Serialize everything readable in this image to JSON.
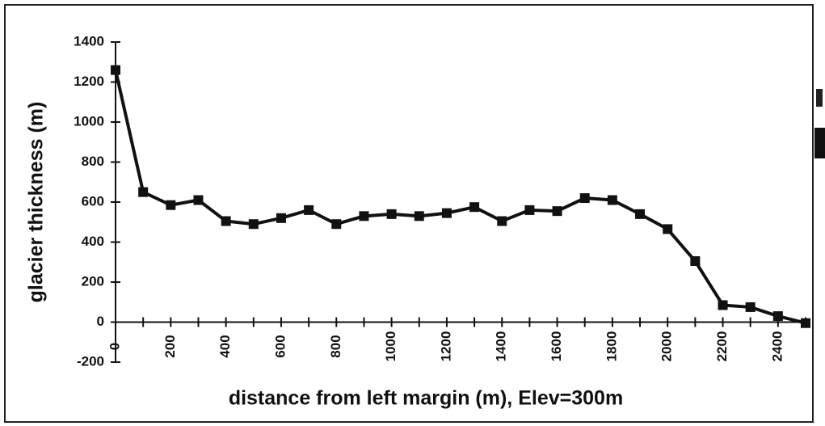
{
  "chart_data": {
    "type": "line",
    "xlabel": "distance from left margin (m), Elev=300m",
    "ylabel": "glacier thickness (m)",
    "x": [
      0,
      100,
      200,
      300,
      400,
      500,
      600,
      700,
      800,
      900,
      1000,
      1100,
      1200,
      1300,
      1400,
      1500,
      1600,
      1700,
      1800,
      1900,
      2000,
      2100,
      2200,
      2300,
      2400,
      2500
    ],
    "series": [
      {
        "color": "#111111",
        "values": [
          1260,
          650,
          585,
          610,
          505,
          490,
          520,
          560,
          490,
          530,
          540,
          530,
          545,
          575,
          505,
          560,
          555,
          620,
          610,
          540,
          465,
          305,
          85,
          75,
          30,
          -5
        ]
      }
    ],
    "xlim": [
      0,
      2500
    ],
    "ylim": [
      -200,
      1400
    ],
    "xticks": [
      0,
      200,
      400,
      600,
      800,
      1000,
      1200,
      1400,
      1600,
      1800,
      2000,
      2200,
      2400
    ],
    "yticks": [
      -200,
      0,
      200,
      400,
      600,
      800,
      1000,
      1200,
      1400
    ],
    "grid": false
  }
}
